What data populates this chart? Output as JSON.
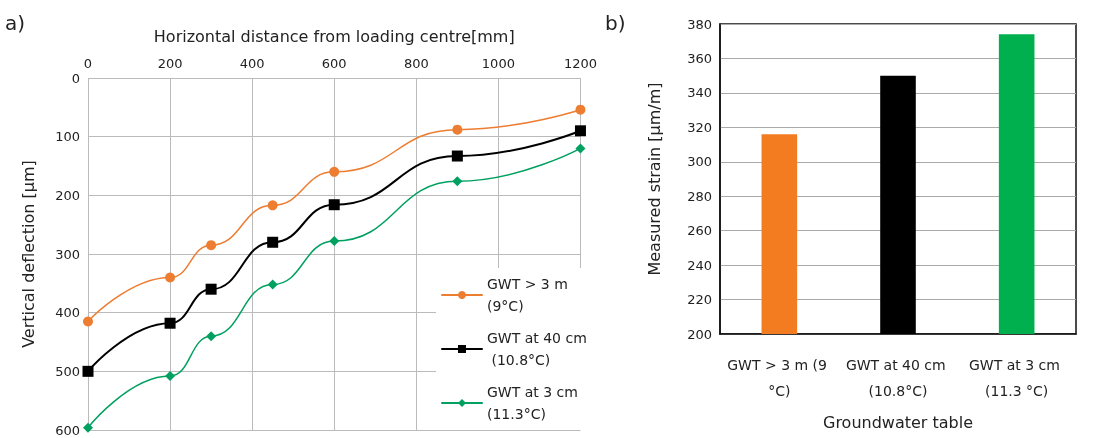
{
  "chart_data": [
    {
      "type": "line",
      "title": "a)",
      "xlabel": "Horizontal distance from loading centre[mm]",
      "ylabel": "Vertical deflection [µm]",
      "x": [
        0,
        200,
        300,
        450,
        600,
        900,
        1200
      ],
      "xlim": [
        0,
        1200
      ],
      "xticks": [
        0,
        200,
        400,
        600,
        800,
        1000,
        1200
      ],
      "ylim": [
        600,
        0
      ],
      "yticks": [
        0,
        100,
        200,
        300,
        400,
        500,
        600
      ],
      "series": [
        {
          "name": "GWT > 3 m (9°C)",
          "color": "#ed7d31",
          "marker": "circle",
          "values": [
            415,
            340,
            285,
            217,
            160,
            88,
            54
          ]
        },
        {
          "name": "GWT at 40 cm (10.8°C)",
          "color": "#000000",
          "marker": "square",
          "values": [
            500,
            418,
            360,
            280,
            216,
            133,
            90
          ]
        },
        {
          "name": "GWT at 3 cm (11.3°C)",
          "color": "#00a060",
          "marker": "diamond",
          "values": [
            596,
            508,
            440,
            352,
            278,
            176,
            120
          ]
        }
      ],
      "grid": true,
      "legend": "bottom right",
      "line_style": "solid"
    },
    {
      "type": "bar",
      "title": "b)",
      "xlabel": "Groundwater table",
      "ylabel": "Measured strain [µm/m]",
      "categories": [
        "GWT > 3 m (9 °C)",
        "GWT at 40 cm (10.8°C)",
        "GWT at 3 cm (11.3 °C)"
      ],
      "values": [
        316,
        350,
        374
      ],
      "colors": [
        "#f47c20",
        "#000000",
        "#00b04f"
      ],
      "ylim": [
        200,
        380
      ],
      "yticks": [
        200,
        220,
        240,
        260,
        280,
        300,
        320,
        340,
        360,
        380
      ],
      "grid": "y",
      "legend": false
    }
  ]
}
